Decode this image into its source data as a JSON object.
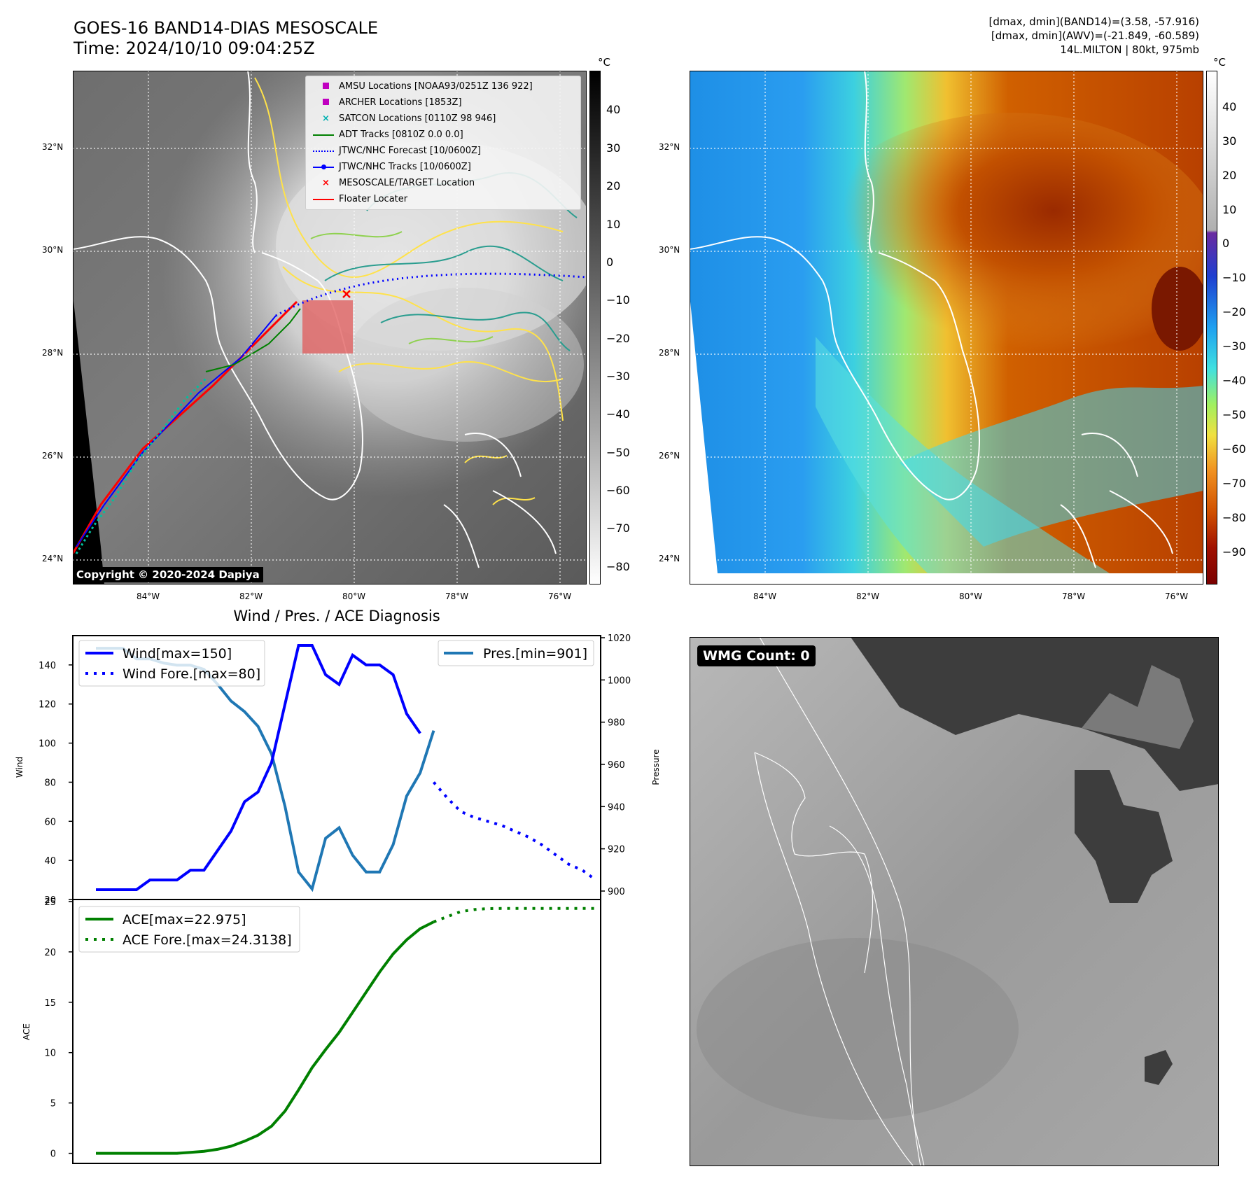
{
  "header": {
    "title_line1": "GOES-16 BAND14-DIAS MESOSCALE",
    "title_line2": "Time: 2024/10/10 09:04:25Z",
    "info_line1": "[dmax, dmin](BAND14)=(3.58, -57.916)",
    "info_line2": "[dmax, dmin](AWV)=(-21.849, -60.589)",
    "info_line3": "14L.MILTON | 80kt, 975mb"
  },
  "map_left": {
    "lat_labels": [
      "32°N",
      "30°N",
      "28°N",
      "26°N",
      "24°N"
    ],
    "lon_labels": [
      "84°W",
      "82°W",
      "80°W",
      "78°W",
      "76°W"
    ],
    "copyright": "Copyright © 2020-2024 Dapiya",
    "legend": [
      {
        "label": "AMSU Locations [NOAA93/0251Z 136 922]",
        "marker": "square",
        "color": "#c000c0"
      },
      {
        "label": "ARCHER Locations [1853Z]",
        "marker": "square",
        "color": "#c000c0"
      },
      {
        "label": "SATCON Locations [0110Z 98 946]",
        "marker": "x",
        "color": "#00b0b0"
      },
      {
        "label": "ADT Tracks [0810Z 0.0 0.0]",
        "marker": "line",
        "color": "#008000"
      },
      {
        "label": "JTWC/NHC Forecast [10/0600Z]",
        "marker": "dotted",
        "color": "#0000ff"
      },
      {
        "label": "JTWC/NHC Tracks [10/0600Z]",
        "marker": "line-dot",
        "color": "#0000ff"
      },
      {
        "label": "MESOSCALE/TARGET Location",
        "marker": "x",
        "color": "#ff0000"
      },
      {
        "label": "Floater Locater",
        "marker": "line",
        "color": "#ff0000"
      }
    ],
    "colorbar_unit": "°C",
    "colorbar_ticks": [
      "40",
      "30",
      "20",
      "10",
      "0",
      "−10",
      "−20",
      "−30",
      "−40",
      "−50",
      "−60",
      "−70",
      "−80"
    ]
  },
  "map_right": {
    "lat_labels": [
      "32°N",
      "30°N",
      "28°N",
      "26°N",
      "24°N"
    ],
    "lon_labels": [
      "84°W",
      "82°W",
      "80°W",
      "78°W",
      "76°W"
    ],
    "colorbar_unit": "°C",
    "colorbar_ticks": [
      "40",
      "30",
      "20",
      "10",
      "0",
      "−10",
      "−20",
      "−30",
      "−40",
      "−50",
      "−60",
      "−70",
      "−80",
      "−90"
    ]
  },
  "wmg": {
    "label": "WMG Count: 0"
  },
  "colors": {
    "wind": "#0000ff",
    "pressure": "#1f77b4",
    "ace": "#008000",
    "track_red": "#ff0000",
    "contour_yellow": "#ffe24a",
    "contour_teal": "#2a9d8f",
    "contour_green": "#8fd14f"
  },
  "chart_data": [
    {
      "type": "line",
      "title": "Wind / Pres. / ACE Diagnosis",
      "ylabel": "Wind",
      "ylim": [
        20,
        155
      ],
      "yticks": [
        "20",
        "40",
        "60",
        "80",
        "100",
        "120",
        "140"
      ],
      "y2label": "Pressure",
      "y2lim": [
        896,
        1021
      ],
      "y2ticks": [
        "900",
        "920",
        "940",
        "960",
        "980",
        "1000",
        "1020"
      ],
      "legend_wind": "Wind[max=150]",
      "legend_wind_fore": "Wind Fore.[max=80]",
      "legend_pres": "Pres.[min=901]",
      "series": [
        {
          "name": "Wind[max=150]",
          "axis": "left",
          "style": "solid",
          "x": [
            0,
            1,
            2,
            3,
            4,
            5,
            6,
            7,
            8,
            9,
            10,
            11,
            12,
            13,
            14,
            15,
            16,
            17,
            18,
            19,
            20,
            21,
            22,
            23,
            24
          ],
          "values": [
            25,
            25,
            25,
            25,
            30,
            30,
            30,
            35,
            35,
            45,
            55,
            70,
            75,
            90,
            120,
            150,
            150,
            135,
            130,
            145,
            140,
            140,
            135,
            115,
            105
          ]
        },
        {
          "name": "Wind Fore.[max=80]",
          "axis": "left",
          "style": "dotted",
          "x": [
            25,
            26,
            27,
            28,
            29,
            30,
            31,
            32,
            33,
            34,
            35,
            36,
            37
          ],
          "values": [
            80,
            72,
            65,
            62,
            60,
            58,
            55,
            52,
            48,
            43,
            38,
            35,
            30
          ]
        },
        {
          "name": "Pres.[min=901]",
          "axis": "right",
          "style": "solid",
          "x": [
            0,
            1,
            2,
            3,
            4,
            5,
            6,
            7,
            8,
            9,
            10,
            11,
            12,
            13,
            14,
            15,
            16,
            17,
            18,
            19,
            20,
            21,
            22,
            23,
            24,
            25
          ],
          "values": [
            1015,
            1015,
            1015,
            1010,
            1010,
            1008,
            1007,
            1007,
            1005,
            998,
            990,
            985,
            978,
            965,
            940,
            909,
            901,
            925,
            930,
            917,
            909,
            909,
            922,
            945,
            956,
            976
          ]
        }
      ]
    },
    {
      "type": "line",
      "ylabel": "ACE",
      "ylim": [
        -1,
        25.2
      ],
      "yticks": [
        "0",
        "5",
        "10",
        "15",
        "20",
        "25"
      ],
      "legend_ace": "ACE[max=22.975]",
      "legend_ace_fore": "ACE Fore.[max=24.3138]",
      "series": [
        {
          "name": "ACE[max=22.975]",
          "style": "solid",
          "x": [
            0,
            1,
            2,
            3,
            4,
            5,
            6,
            7,
            8,
            9,
            10,
            11,
            12,
            13,
            14,
            15,
            16,
            17,
            18,
            19,
            20,
            21,
            22,
            23,
            24,
            25
          ],
          "values": [
            0,
            0,
            0,
            0,
            0,
            0,
            0,
            0.1,
            0.2,
            0.4,
            0.7,
            1.2,
            1.8,
            2.7,
            4.2,
            6.3,
            8.5,
            10.3,
            12,
            14,
            16,
            18,
            19.8,
            21.2,
            22.3,
            22.975
          ]
        },
        {
          "name": "ACE Fore.[max=24.3138]",
          "style": "dotted",
          "x": [
            25,
            26,
            27,
            28,
            29,
            30,
            31,
            32,
            33,
            34,
            35,
            36,
            37
          ],
          "values": [
            22.975,
            23.5,
            24,
            24.2,
            24.3,
            24.31,
            24.31,
            24.31,
            24.31,
            24.31,
            24.31,
            24.31,
            24.3138
          ]
        }
      ]
    }
  ]
}
